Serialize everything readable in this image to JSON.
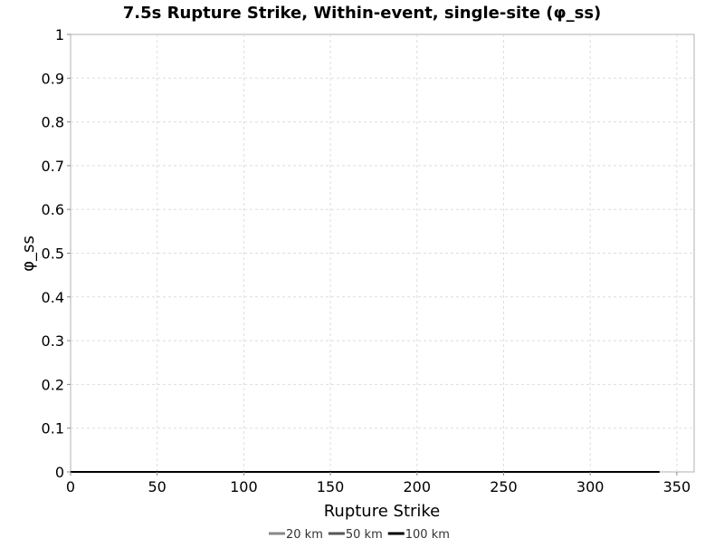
{
  "chart_data": {
    "type": "line",
    "title": "7.5s Rupture Strike, Within-event, single-site (φ_ss)",
    "xlabel": "Rupture Strike",
    "ylabel": "φ_ss",
    "xlim": [
      0,
      360
    ],
    "ylim": [
      0,
      1
    ],
    "x_ticks": [
      0,
      50,
      100,
      150,
      200,
      250,
      300,
      350
    ],
    "x_tick_labels": [
      "0",
      "50",
      "100",
      "150",
      "200",
      "250",
      "300",
      "350"
    ],
    "y_ticks": [
      0,
      0.1,
      0.2,
      0.3,
      0.4,
      0.5,
      0.6,
      0.7,
      0.8,
      0.9,
      1
    ],
    "y_tick_labels": [
      "0",
      "0.1",
      "0.2",
      "0.3",
      "0.4",
      "0.5",
      "0.6",
      "0.7",
      "0.8",
      "0.9",
      "1"
    ],
    "grid": true,
    "legend_position": "bottom-center",
    "series": [
      {
        "name": "20 km",
        "color": "#888888",
        "x": [
          0,
          340
        ],
        "y": [
          0,
          0
        ]
      },
      {
        "name": "50 km",
        "color": "#555555",
        "x": [
          0,
          340
        ],
        "y": [
          0,
          0
        ]
      },
      {
        "name": "100 km",
        "color": "#000000",
        "x": [
          0,
          340
        ],
        "y": [
          0,
          0
        ]
      }
    ]
  }
}
